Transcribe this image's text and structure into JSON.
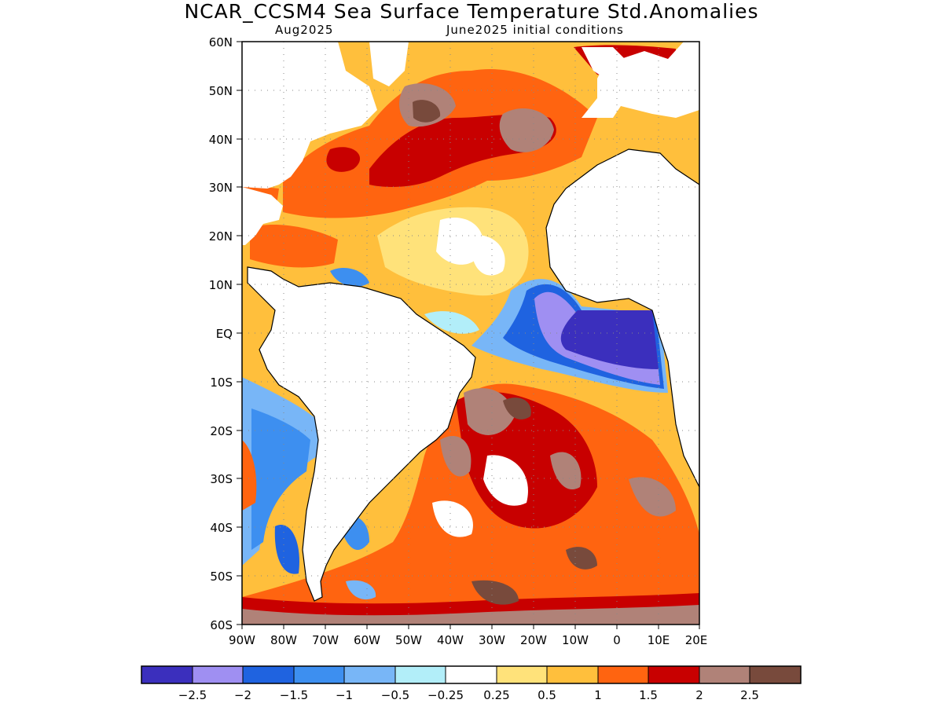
{
  "title": "NCAR_CCSM4 Sea Surface Temperature Std.Anomalies",
  "subtitle_left": "Aug2025",
  "subtitle_right": "June2025 initial conditions",
  "lat_labels": [
    "60N",
    "50N",
    "40N",
    "30N",
    "20N",
    "10N",
    "EQ",
    "10S",
    "20S",
    "30S",
    "40S",
    "50S",
    "60S"
  ],
  "lon_labels": [
    "90W",
    "80W",
    "70W",
    "60W",
    "50W",
    "40W",
    "30W",
    "20W",
    "10W",
    "0",
    "10E",
    "20E"
  ],
  "colorbar": {
    "labels": [
      "−2.5",
      "−2",
      "−1.5",
      "−1",
      "−0.5",
      "−0.25",
      "0.25",
      "0.5",
      "1",
      "1.5",
      "2",
      "2.5"
    ],
    "colors": [
      "#3b2fbd",
      "#9f8ff2",
      "#1f63e0",
      "#3d8ff0",
      "#78b6f7",
      "#b2eef9",
      "#ffffff",
      "#ffe27a",
      "#ffbf3c",
      "#ff6410",
      "#c80000",
      "#b08278",
      "#784a3c"
    ]
  }
}
